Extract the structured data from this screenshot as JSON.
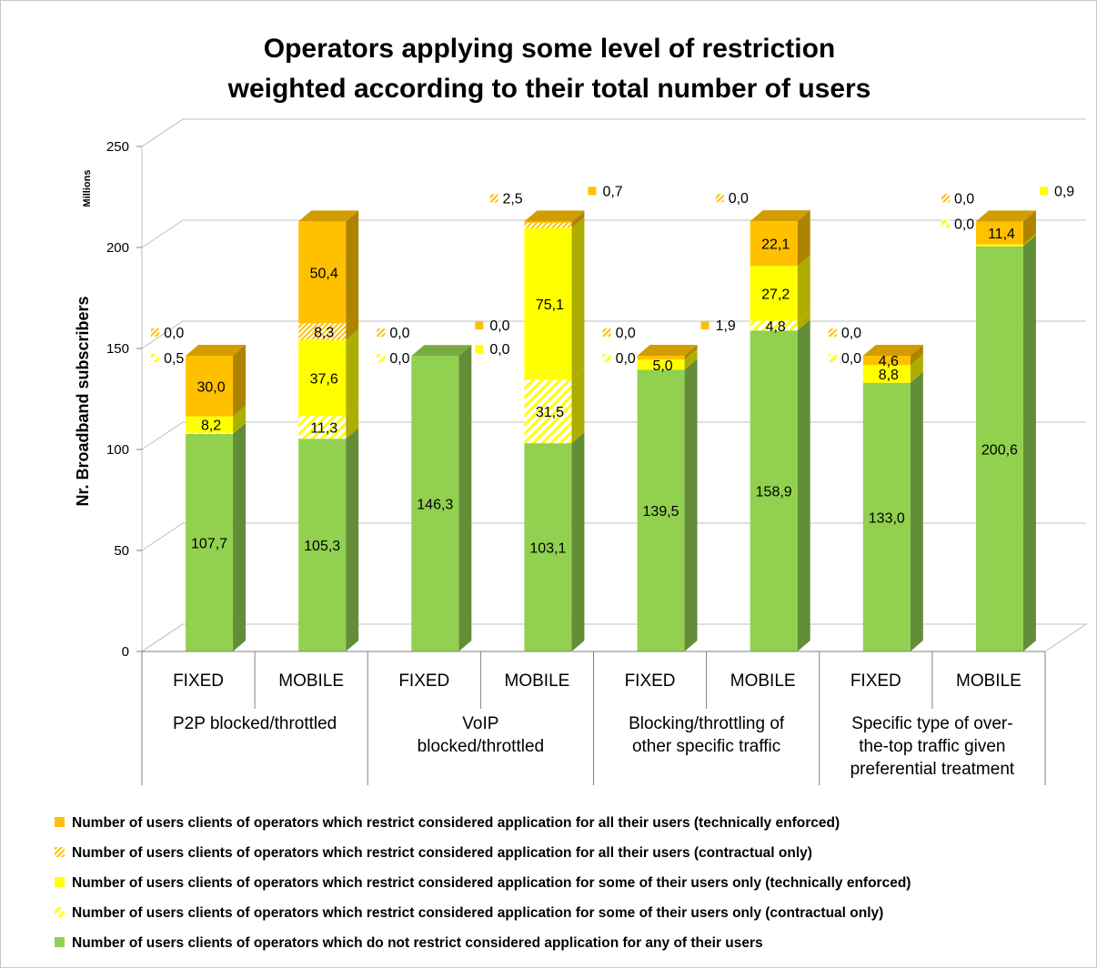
{
  "chart_data": {
    "type": "bar",
    "stacked": true,
    "title": "Operators applying some level of restriction weighted according to their total number of users",
    "title_lines": [
      "Operators applying some level of restriction",
      "weighted according to their total number of users"
    ],
    "ylabel": "Nr. Broadband subscribers",
    "yunits": "Millions",
    "ylim": [
      0,
      250
    ],
    "yticks": [
      0,
      50,
      100,
      150,
      200,
      250
    ],
    "grid": true,
    "legend_position": "bottom",
    "categories": [
      "FIXED",
      "MOBILE",
      "FIXED",
      "MOBILE",
      "FIXED",
      "MOBILE",
      "FIXED",
      "MOBILE"
    ],
    "groups": [
      {
        "lines": [
          "P2P blocked/throttled"
        ],
        "span": [
          0,
          1
        ]
      },
      {
        "lines": [
          "VoIP",
          "blocked/throttled"
        ],
        "span": [
          2,
          3
        ]
      },
      {
        "lines": [
          "Blocking/throttling of",
          "other specific traffic"
        ],
        "span": [
          4,
          5
        ]
      },
      {
        "lines": [
          "Specific type of over-",
          "the-top traffic given",
          "preferential treatment"
        ],
        "span": [
          6,
          7
        ]
      }
    ],
    "series": [
      {
        "name": "Number of users clients of operators which do not restrict considered application for any of their users",
        "color": "#92d050",
        "pattern": "solid",
        "values": [
          107.7,
          105.3,
          146.3,
          103.1,
          139.5,
          158.9,
          133.0,
          200.6
        ],
        "labels": [
          "107,7",
          "105,3",
          "146,3",
          "103,1",
          "139,5",
          "158,9",
          "133,0",
          "200,6"
        ]
      },
      {
        "name": "Number of users clients of operators which restrict considered application for some of their users only (contractual only)",
        "color": "#ffff00",
        "pattern": "hatch-light",
        "values": [
          0.5,
          11.3,
          0.0,
          31.5,
          0.0,
          4.8,
          0.0,
          0.0
        ],
        "labels": [
          "0,5",
          "11,3",
          "0,0",
          "31,5",
          "0,0",
          "4,8",
          "0,0",
          "0,0"
        ]
      },
      {
        "name": "Number of users clients of operators which restrict considered application for some of their users only (technically enforced)",
        "color": "#ffff00",
        "pattern": "solid",
        "values": [
          8.2,
          37.6,
          0.0,
          75.1,
          5.0,
          27.2,
          8.8,
          0.9
        ],
        "labels": [
          "8,2",
          "37,6",
          "0,0",
          "75,1",
          "5,0",
          "27,2",
          "8,8",
          "0,9"
        ]
      },
      {
        "name": "Number of users clients of operators which restrict considered application for all their users (contractual only)",
        "color": "#ffc000",
        "pattern": "hatch-dense",
        "values": [
          0.0,
          8.3,
          0.0,
          2.5,
          0.0,
          0.0,
          0.0,
          0.0
        ],
        "labels": [
          "0,0",
          "8,3",
          "0,0",
          "2,5",
          "0,0",
          "0,0",
          "0,0",
          "0,0"
        ]
      },
      {
        "name": "Number of users clients of operators which restrict considered application for all their users (technically enforced)",
        "color": "#ffc000",
        "pattern": "solid",
        "values": [
          30.0,
          50.4,
          0.0,
          0.7,
          1.9,
          22.1,
          4.6,
          11.4
        ],
        "labels": [
          "30,0",
          "50,4",
          "0,0",
          "0,7",
          "1,9",
          "22,1",
          "4,6",
          "11,4"
        ]
      }
    ],
    "legend_order": [
      4,
      3,
      2,
      1,
      0
    ]
  }
}
